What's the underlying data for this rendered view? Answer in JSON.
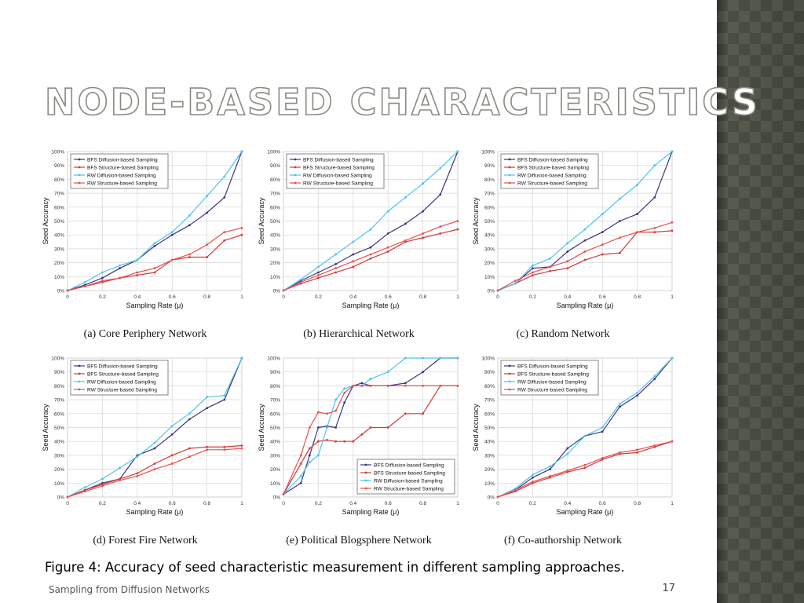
{
  "slide": {
    "title": "Node-based Characteristics",
    "figure_caption": "Figure 4: Accuracy of seed characteristic measurement in different sampling approaches.",
    "footer": "Sampling from Diffusion Networks",
    "page_number": "17"
  },
  "colors": {
    "bfs_diffusion": "#3d3580",
    "bfs_structure": "#cf3b3b",
    "rw_diffusion": "#4dc3ee",
    "rw_structure": "#ee4d4d"
  },
  "chart_data": [
    {
      "type": "line",
      "caption": "(a) Core Periphery Network",
      "xlabel": "Sampling Rate (μ)",
      "ylabel": "Seed Accuracy",
      "xlim": [
        0,
        1
      ],
      "ylim": [
        0,
        100
      ],
      "x_ticks": [
        "0",
        "0.2",
        "0.4",
        "0.6",
        "0.8",
        "1"
      ],
      "y_ticks": [
        "0%",
        "10%",
        "20%",
        "30%",
        "40%",
        "50%",
        "60%",
        "70%",
        "80%",
        "90%",
        "100%"
      ],
      "legend_position": "top-left",
      "x": [
        0,
        0.1,
        0.2,
        0.3,
        0.4,
        0.5,
        0.6,
        0.7,
        0.8,
        0.9,
        1.0
      ],
      "series": [
        {
          "name": "BFS Diffusion-based Sampling",
          "values": [
            0,
            4,
            9,
            16,
            22,
            32,
            40,
            47,
            56,
            67,
            100
          ]
        },
        {
          "name": "BFS Structure-based Sampling",
          "values": [
            0,
            3,
            6,
            9,
            11,
            13,
            22,
            24,
            24,
            36,
            40
          ]
        },
        {
          "name": "RW Diffusion-based Sampling",
          "values": [
            0,
            6,
            13,
            18,
            22,
            34,
            42,
            54,
            68,
            82,
            100
          ]
        },
        {
          "name": "RW Structure-based Sampling",
          "values": [
            0,
            3,
            7,
            9,
            13,
            16,
            22,
            26,
            33,
            42,
            45
          ]
        }
      ]
    },
    {
      "type": "line",
      "caption": "(b) Hierarchical Network",
      "xlabel": "Sampling Rate (μ)",
      "ylabel": "Seed Accuracy",
      "xlim": [
        0,
        1
      ],
      "ylim": [
        0,
        100
      ],
      "x_ticks": [
        "0",
        "0.2",
        "0.4",
        "0.6",
        "0.8",
        "1"
      ],
      "y_ticks": [
        "0%",
        "10%",
        "20%",
        "30%",
        "40%",
        "50%",
        "60%",
        "70%",
        "80%",
        "90%",
        "100%"
      ],
      "legend_position": "top-left",
      "x": [
        0,
        0.1,
        0.2,
        0.3,
        0.4,
        0.5,
        0.6,
        0.7,
        0.8,
        0.9,
        1.0
      ],
      "series": [
        {
          "name": "BFS Diffusion-based Sampling",
          "values": [
            0,
            7,
            13,
            19,
            26,
            31,
            41,
            48,
            57,
            69,
            100
          ]
        },
        {
          "name": "BFS Structure-based Sampling",
          "values": [
            0,
            5,
            9,
            13,
            17,
            23,
            28,
            35,
            38,
            41,
            44
          ]
        },
        {
          "name": "RW Diffusion-based Sampling",
          "values": [
            0,
            8,
            17,
            26,
            35,
            44,
            57,
            67,
            77,
            88,
            100
          ]
        },
        {
          "name": "RW Structure-based Sampling",
          "values": [
            0,
            6,
            11,
            16,
            21,
            26,
            31,
            36,
            41,
            46,
            50
          ]
        }
      ]
    },
    {
      "type": "line",
      "caption": "(c) Random Network",
      "xlabel": "Sampling Rate (μ)",
      "ylabel": "Seed Accuracy",
      "xlim": [
        0,
        1
      ],
      "ylim": [
        0,
        100
      ],
      "x_ticks": [
        "0",
        "0.2",
        "0.4",
        "0.6",
        "0.8",
        "1"
      ],
      "y_ticks": [
        "0%",
        "10%",
        "20%",
        "30%",
        "40%",
        "50%",
        "60%",
        "70%",
        "80%",
        "90%",
        "100%"
      ],
      "legend_position": "top-left",
      "x": [
        0,
        0.1,
        0.2,
        0.3,
        0.4,
        0.5,
        0.6,
        0.7,
        0.8,
        0.9,
        1.0
      ],
      "series": [
        {
          "name": "BFS Diffusion-based Sampling",
          "values": [
            0,
            5,
            16,
            17,
            28,
            36,
            42,
            50,
            55,
            67,
            100
          ]
        },
        {
          "name": "BFS Structure-based Sampling",
          "values": [
            0,
            5,
            11,
            14,
            16,
            22,
            26,
            27,
            42,
            42,
            43
          ]
        },
        {
          "name": "RW Diffusion-based Sampling",
          "values": [
            0,
            5,
            18,
            23,
            34,
            44,
            55,
            66,
            76,
            90,
            100
          ]
        },
        {
          "name": "RW Structure-based Sampling",
          "values": [
            0,
            7,
            13,
            17,
            21,
            28,
            33,
            38,
            42,
            45,
            49
          ]
        }
      ]
    },
    {
      "type": "line",
      "caption": "(d) Forest Fire Network",
      "xlabel": "Sampling Rate (μ)",
      "ylabel": "Seed Accuracy",
      "xlim": [
        0,
        1
      ],
      "ylim": [
        0,
        100
      ],
      "x_ticks": [
        "0",
        "0.2",
        "0.4",
        "0.6",
        "0.8",
        "1"
      ],
      "y_ticks": [
        "0%",
        "10%",
        "20%",
        "30%",
        "40%",
        "50%",
        "60%",
        "70%",
        "80%",
        "90%",
        "100%"
      ],
      "legend_position": "top-left",
      "x": [
        0,
        0.1,
        0.2,
        0.3,
        0.4,
        0.5,
        0.6,
        0.7,
        0.8,
        0.9,
        1.0
      ],
      "series": [
        {
          "name": "BFS Diffusion-based Sampling",
          "values": [
            0,
            5,
            10,
            13,
            30,
            35,
            45,
            56,
            64,
            70,
            100
          ]
        },
        {
          "name": "BFS Structure-based Sampling",
          "values": [
            0,
            5,
            9,
            13,
            17,
            24,
            30,
            35,
            36,
            36,
            37
          ]
        },
        {
          "name": "RW Diffusion-based Sampling",
          "values": [
            0,
            7,
            13,
            21,
            29,
            39,
            51,
            60,
            72,
            73,
            100
          ]
        },
        {
          "name": "RW Structure-based Sampling",
          "values": [
            0,
            4,
            8,
            12,
            15,
            20,
            24,
            29,
            34,
            34,
            35
          ]
        }
      ]
    },
    {
      "type": "line",
      "caption": "(e) Political Blogsphere Network",
      "xlabel": "Sampling Rate (μ)",
      "ylabel": "Seed Accuracy",
      "xlim": [
        0,
        1
      ],
      "ylim": [
        0,
        100
      ],
      "x_ticks": [
        "0",
        "0.2",
        "0.4",
        "0.6",
        "0.8",
        "1"
      ],
      "y_ticks": [
        "0%",
        "10%",
        "20%",
        "30%",
        "40%",
        "50%",
        "60%",
        "70%",
        "80%",
        "90%",
        "100%"
      ],
      "legend_position": "bottom-right",
      "x": [
        0,
        0.1,
        0.15,
        0.2,
        0.25,
        0.3,
        0.35,
        0.4,
        0.45,
        0.5,
        0.6,
        0.7,
        0.8,
        0.9,
        1.0
      ],
      "series": [
        {
          "name": "BFS Diffusion-based Sampling",
          "values": [
            2,
            10,
            30,
            50,
            51,
            50,
            68,
            80,
            82,
            80,
            80,
            82,
            90,
            100,
            100
          ]
        },
        {
          "name": "BFS Structure-based Sampling",
          "values": [
            2,
            24,
            35,
            40,
            41,
            40,
            40,
            40,
            45,
            50,
            50,
            60,
            60,
            80,
            80
          ]
        },
        {
          "name": "RW Diffusion-based Sampling",
          "values": [
            2,
            15,
            25,
            30,
            50,
            70,
            78,
            80,
            80,
            85,
            90,
            100,
            100,
            100,
            100
          ]
        },
        {
          "name": "RW Structure-based Sampling",
          "values": [
            2,
            30,
            50,
            61,
            60,
            62,
            75,
            80,
            80,
            80,
            80,
            80,
            80,
            80,
            80
          ]
        }
      ]
    },
    {
      "type": "line",
      "caption": "(f) Co-authorship Network",
      "xlabel": "Sampling Rate (μ)",
      "ylabel": "Seed Accuracy",
      "xlim": [
        0,
        1
      ],
      "ylim": [
        0,
        100
      ],
      "x_ticks": [
        "0",
        "0.2",
        "0.4",
        "0.6",
        "0.8",
        "1"
      ],
      "y_ticks": [
        "0%",
        "10%",
        "20%",
        "30%",
        "40%",
        "50%",
        "60%",
        "70%",
        "80%",
        "90%",
        "100%"
      ],
      "legend_position": "top-left",
      "x": [
        0,
        0.1,
        0.2,
        0.3,
        0.4,
        0.5,
        0.6,
        0.7,
        0.8,
        0.9,
        1.0
      ],
      "series": [
        {
          "name": "BFS Diffusion-based Sampling",
          "values": [
            0,
            5,
            14,
            20,
            35,
            44,
            47,
            65,
            73,
            85,
            100
          ]
        },
        {
          "name": "BFS Structure-based Sampling",
          "values": [
            0,
            4,
            10,
            14,
            18,
            21,
            27,
            31,
            32,
            36,
            40
          ]
        },
        {
          "name": "RW Diffusion-based Sampling",
          "values": [
            0,
            6,
            16,
            22,
            31,
            44,
            50,
            67,
            75,
            87,
            100
          ]
        },
        {
          "name": "RW Structure-based Sampling",
          "values": [
            0,
            5,
            11,
            15,
            19,
            23,
            28,
            32,
            34,
            37,
            40
          ]
        }
      ]
    }
  ]
}
